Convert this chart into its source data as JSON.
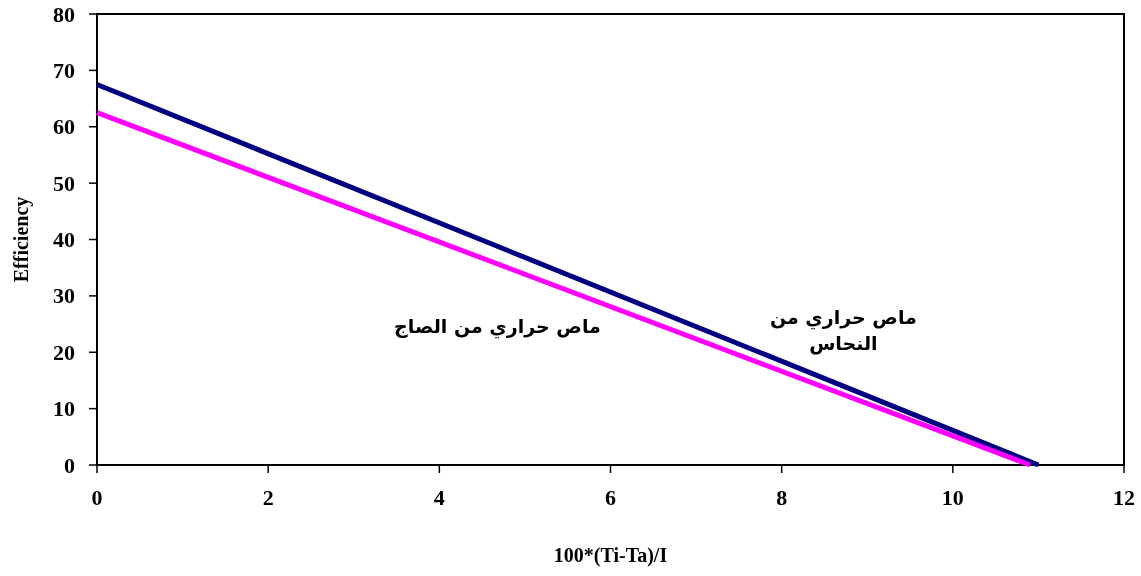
{
  "chart_data": {
    "type": "line",
    "xlabel": "100*(Ti-Ta)/I",
    "ylabel": "Efficiency",
    "xlim": [
      0,
      12
    ],
    "xticks": [
      0,
      2,
      4,
      6,
      8,
      10,
      12
    ],
    "ylim": [
      0,
      80
    ],
    "yticks": [
      0,
      10,
      20,
      30,
      40,
      50,
      60,
      70,
      80
    ],
    "grid": false,
    "marker": "none",
    "line_style": "solid",
    "series": [
      {
        "name": "ماص حراري من النحاس",
        "color": "#000080",
        "x": [
          0,
          11.0
        ],
        "values": [
          67.5,
          0
        ]
      },
      {
        "name": "ماص حراري من الصاج",
        "color": "#ff00ff",
        "x": [
          0,
          10.9
        ],
        "values": [
          62.5,
          0
        ]
      }
    ]
  }
}
